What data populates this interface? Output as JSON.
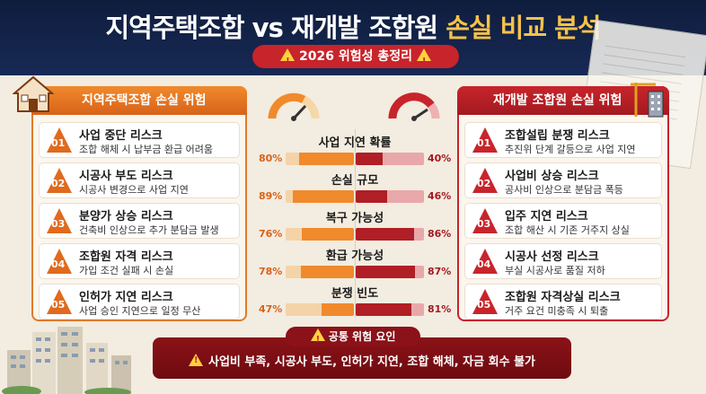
{
  "header": {
    "title_part1": "지역주택조합 vs 재개발 조합원 ",
    "title_highlight": "손실 비교 분석",
    "subtitle": "2026 위험성 총정리"
  },
  "left_panel": {
    "title": "지역주택조합 손실 위험",
    "items": [
      {
        "num": "01",
        "title": "사업 중단 리스크",
        "desc": "조합 해체 시 납부금 환급 어려움"
      },
      {
        "num": "02",
        "title": "시공사 부도 리스크",
        "desc": "시공사 변경으로 사업 지연"
      },
      {
        "num": "03",
        "title": "분양가 상승 리스크",
        "desc": "건축비 인상으로 추가 분담금 발생"
      },
      {
        "num": "04",
        "title": "조합원 자격 리스크",
        "desc": "가입 조건 실패 시 손실"
      },
      {
        "num": "05",
        "title": "인허가 지연 리스크",
        "desc": "사업 승인 지연으로 일정 무산"
      }
    ]
  },
  "right_panel": {
    "title": "재개발 조합원 손실 위험",
    "items": [
      {
        "num": "01",
        "title": "조합설립 분쟁 리스크",
        "desc": "추진위 단계 갈등으로 사업 지연"
      },
      {
        "num": "02",
        "title": "사업비 상승 리스크",
        "desc": "공사비 인상으로 분담금 폭등"
      },
      {
        "num": "03",
        "title": "입주 지연 리스크",
        "desc": "조합 해산 시 기존 거주지 상실"
      },
      {
        "num": "04",
        "title": "시공사 선정 리스크",
        "desc": "부실 시공사로 품질 저하"
      },
      {
        "num": "05",
        "title": "조합원 자격상실 리스크",
        "desc": "거주 요건 미충족 시 퇴출"
      }
    ]
  },
  "comparison": [
    {
      "label": "사업 지연 확률",
      "left": 80,
      "right": 40,
      "left_text": "80%",
      "right_text": "40%"
    },
    {
      "label": "손실 규모",
      "left": 89,
      "right": 46,
      "left_text": "89%",
      "right_text": "46%"
    },
    {
      "label": "복구 가능성",
      "left": 76,
      "right": 86,
      "left_text": "76%",
      "right_text": "86%"
    },
    {
      "label": "환급 가능성",
      "left": 78,
      "right": 87,
      "left_text": "78%",
      "right_text": "87%"
    },
    {
      "label": "분쟁 빈도",
      "left": 47,
      "right": 81,
      "left_text": "47%",
      "right_text": "81%"
    }
  ],
  "common": {
    "title": "공통 위험 요인",
    "text": "사업비 부족, 시공사 부도, 인허가 지연, 조합 해체, 자금 회수 불가"
  },
  "colors": {
    "navy": "#0f1d3d",
    "orange": "#f08a2c",
    "red": "#c8242b",
    "gold": "#f5c24a"
  }
}
